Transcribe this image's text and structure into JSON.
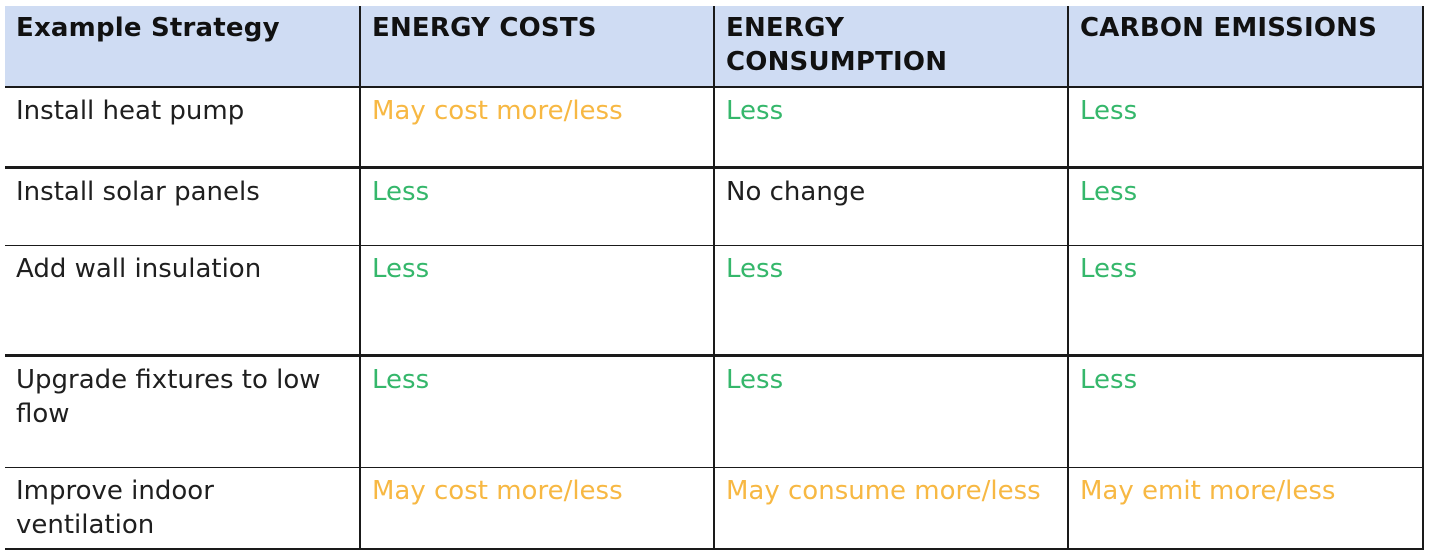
{
  "table": {
    "headers": [
      "Example Strategy",
      "ENERGY COSTS",
      "ENERGY CONSUMPTION",
      "CARBON EMISSIONS"
    ],
    "rows": [
      {
        "strategy": "Install heat pump",
        "energy_costs": "May cost more/less",
        "energy_consumption": "Less",
        "carbon_emissions": "Less"
      },
      {
        "strategy": "Install solar panels",
        "energy_costs": "Less",
        "energy_consumption": "No change",
        "carbon_emissions": "Less"
      },
      {
        "strategy": "Add wall insulation",
        "energy_costs": "Less",
        "energy_consumption": "Less",
        "carbon_emissions": "Less"
      },
      {
        "strategy": "Upgrade fixtures to low flow",
        "energy_costs": "Less",
        "energy_consumption": "Less",
        "carbon_emissions": "Less"
      },
      {
        "strategy": "Improve indoor ventilation",
        "energy_costs": "May cost more/less",
        "energy_consumption": "May consume more/less",
        "carbon_emissions": "May emit more/less"
      }
    ]
  },
  "colors": {
    "header_background": "#cfdcf3",
    "less": "#35b76b",
    "uncertain": "#f7b843",
    "neutral": "#1f1f1f",
    "border": "#1a1a1a"
  }
}
